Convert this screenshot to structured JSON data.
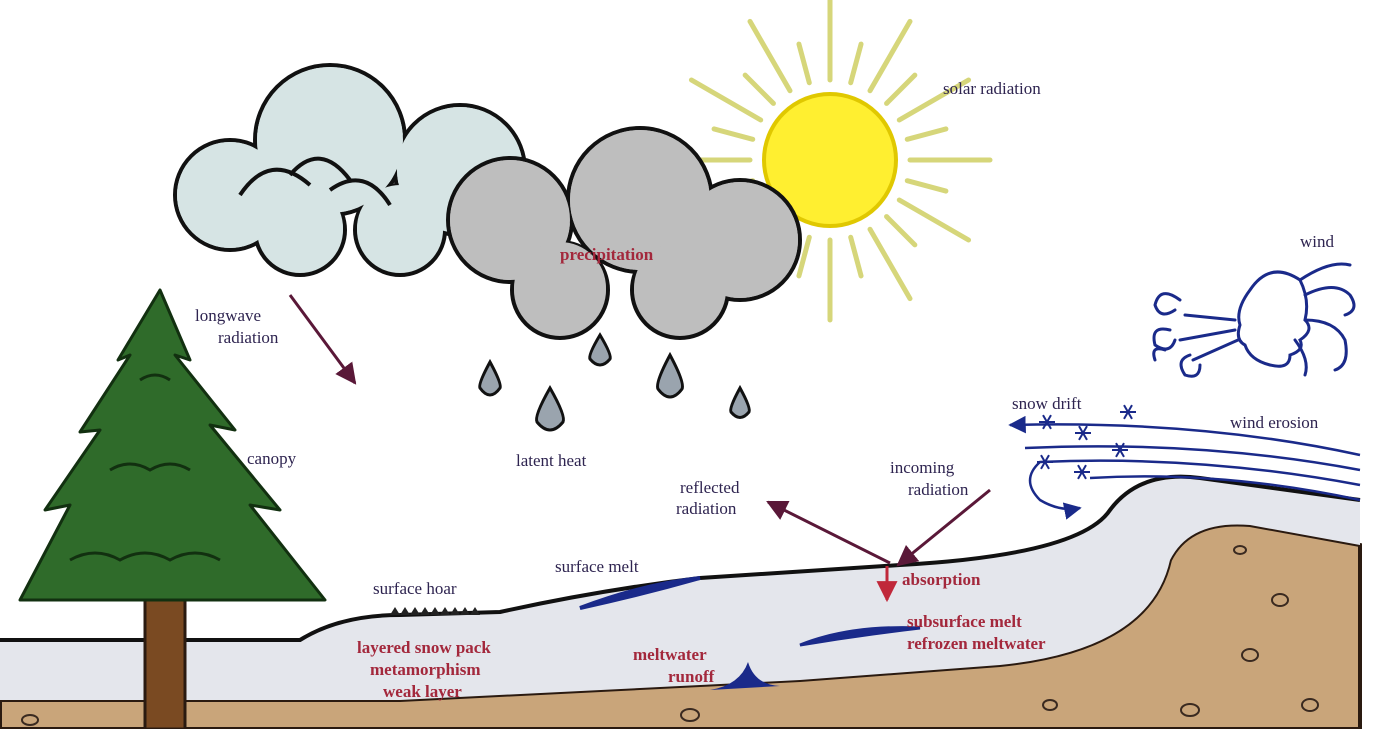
{
  "labels": {
    "solar_radiation": "solar radiation",
    "wind": "wind",
    "longwave_radiation": [
      "longwave",
      "radiation"
    ],
    "precipitation": "precipitation",
    "canopy": "canopy",
    "latent_heat": "latent heat",
    "reflected_radiation": [
      "reflected",
      "radiation"
    ],
    "incoming_radiation": [
      "incoming",
      "radiation"
    ],
    "snow_drift": "snow drift",
    "wind_erosion": "wind erosion",
    "absorption": "absorption",
    "surface_melt": "surface melt",
    "surface_hoar": "surface hoar",
    "snow_pack": [
      "layered snow pack",
      "metamorphism",
      "weak layer"
    ],
    "meltwater_runoff": [
      "meltwater",
      "runoff"
    ],
    "subsurface_melt": [
      "subsurface melt",
      "refrozen meltwater"
    ]
  }
}
